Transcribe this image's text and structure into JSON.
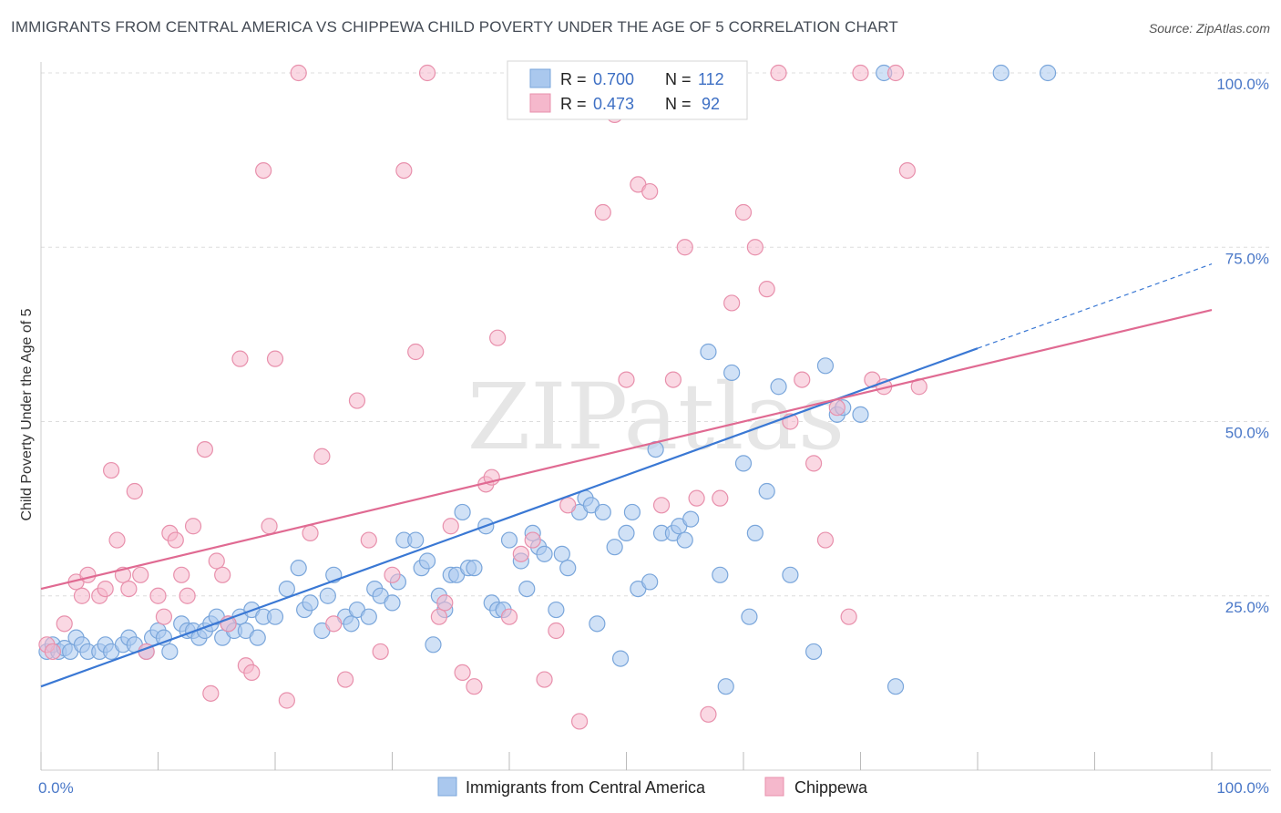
{
  "title": "IMMIGRANTS FROM CENTRAL AMERICA VS CHIPPEWA CHILD POVERTY UNDER THE AGE OF 5 CORRELATION CHART",
  "source": "Source: ZipAtlas.com",
  "colors": {
    "blue_fill": "#aac8ee",
    "blue_stroke": "#7aa6db",
    "blue_line": "#3a78d4",
    "pink_fill": "#f5b8cc",
    "pink_stroke": "#e890ac",
    "pink_line": "#e06a92",
    "grid": "#dddddd",
    "axis_text": "#4a78c8"
  },
  "chart_data": {
    "type": "scatter",
    "xlabel": "",
    "ylabel": "Child Poverty Under the Age of 5",
    "xlim": [
      0,
      100
    ],
    "ylim": [
      0,
      100
    ],
    "x_tick_labels": [
      "0.0%",
      "100.0%"
    ],
    "y_tick_labels": [
      "25.0%",
      "50.0%",
      "75.0%",
      "100.0%"
    ],
    "y_ticks": [
      25,
      50,
      75,
      100
    ],
    "watermark": "ZIPatlas",
    "legend": [
      {
        "series": "Immigrants from Central America",
        "r_label": "R =",
        "r": "0.700",
        "n_label": "N =",
        "n": "112"
      },
      {
        "series": "Chippewa",
        "r_label": "R =",
        "r": "0.473",
        "n_label": "N =",
        "n": "92"
      }
    ],
    "series": [
      {
        "name": "Immigrants from Central America",
        "color": "blue",
        "trend": {
          "x0": 0,
          "y0": 12,
          "x1": 80,
          "y1": 60.5,
          "dash_to_x": 100,
          "dash_to_y": 72.6
        },
        "points": [
          [
            0.5,
            17
          ],
          [
            1,
            18
          ],
          [
            1.5,
            17
          ],
          [
            2,
            17.5
          ],
          [
            2.5,
            17
          ],
          [
            3,
            19
          ],
          [
            3.5,
            18
          ],
          [
            4,
            17
          ],
          [
            5,
            17
          ],
          [
            5.5,
            18
          ],
          [
            6,
            17
          ],
          [
            7,
            18
          ],
          [
            7.5,
            19
          ],
          [
            8,
            18
          ],
          [
            9,
            17
          ],
          [
            9.5,
            19
          ],
          [
            10,
            20
          ],
          [
            10.5,
            19
          ],
          [
            11,
            17
          ],
          [
            12,
            21
          ],
          [
            12.5,
            20
          ],
          [
            13,
            20
          ],
          [
            13.5,
            19
          ],
          [
            14,
            20
          ],
          [
            14.5,
            21
          ],
          [
            15,
            22
          ],
          [
            15.5,
            19
          ],
          [
            16,
            21
          ],
          [
            16.5,
            20
          ],
          [
            17,
            22
          ],
          [
            17.5,
            20
          ],
          [
            18,
            23
          ],
          [
            18.5,
            19
          ],
          [
            19,
            22
          ],
          [
            20,
            22
          ],
          [
            21,
            26
          ],
          [
            22,
            29
          ],
          [
            22.5,
            23
          ],
          [
            23,
            24
          ],
          [
            24,
            20
          ],
          [
            24.5,
            25
          ],
          [
            25,
            28
          ],
          [
            26,
            22
          ],
          [
            26.5,
            21
          ],
          [
            27,
            23
          ],
          [
            28,
            22
          ],
          [
            28.5,
            26
          ],
          [
            29,
            25
          ],
          [
            30,
            24
          ],
          [
            30.5,
            27
          ],
          [
            31,
            33
          ],
          [
            32,
            33
          ],
          [
            32.5,
            29
          ],
          [
            33,
            30
          ],
          [
            33.5,
            18
          ],
          [
            34,
            25
          ],
          [
            34.5,
            23
          ],
          [
            35,
            28
          ],
          [
            35.5,
            28
          ],
          [
            36,
            37
          ],
          [
            36.5,
            29
          ],
          [
            37,
            29
          ],
          [
            38,
            35
          ],
          [
            38.5,
            24
          ],
          [
            39,
            23
          ],
          [
            39.5,
            23
          ],
          [
            40,
            33
          ],
          [
            41,
            30
          ],
          [
            41.5,
            26
          ],
          [
            42,
            34
          ],
          [
            42.5,
            32
          ],
          [
            43,
            31
          ],
          [
            44,
            23
          ],
          [
            44.5,
            31
          ],
          [
            45,
            29
          ],
          [
            46,
            37
          ],
          [
            46.5,
            39
          ],
          [
            47,
            38
          ],
          [
            47.5,
            21
          ],
          [
            48,
            37
          ],
          [
            49,
            32
          ],
          [
            49.5,
            16
          ],
          [
            50,
            34
          ],
          [
            50.5,
            37
          ],
          [
            51,
            26
          ],
          [
            52,
            27
          ],
          [
            52.5,
            46
          ],
          [
            53,
            34
          ],
          [
            54,
            34
          ],
          [
            54.5,
            35
          ],
          [
            55,
            33
          ],
          [
            55.5,
            36
          ],
          [
            57,
            60
          ],
          [
            58,
            28
          ],
          [
            58.5,
            12
          ],
          [
            59,
            57
          ],
          [
            60,
            44
          ],
          [
            60.5,
            22
          ],
          [
            61,
            34
          ],
          [
            62,
            40
          ],
          [
            63,
            55
          ],
          [
            64,
            28
          ],
          [
            66,
            17
          ],
          [
            67,
            58
          ],
          [
            68,
            51
          ],
          [
            68.5,
            52
          ],
          [
            70,
            51
          ],
          [
            72,
            100
          ],
          [
            73,
            12
          ],
          [
            82,
            100
          ],
          [
            86,
            100
          ]
        ]
      },
      {
        "name": "Chippewa",
        "color": "pink",
        "trend": {
          "x0": 0,
          "y0": 26,
          "x1": 100,
          "y1": 66
        },
        "points": [
          [
            0.5,
            18
          ],
          [
            1,
            17
          ],
          [
            2,
            21
          ],
          [
            3,
            27
          ],
          [
            3.5,
            25
          ],
          [
            4,
            28
          ],
          [
            5,
            25
          ],
          [
            5.5,
            26
          ],
          [
            6,
            43
          ],
          [
            6.5,
            33
          ],
          [
            7,
            28
          ],
          [
            7.5,
            26
          ],
          [
            8,
            40
          ],
          [
            8.5,
            28
          ],
          [
            9,
            17
          ],
          [
            10,
            25
          ],
          [
            10.5,
            22
          ],
          [
            11,
            34
          ],
          [
            11.5,
            33
          ],
          [
            12,
            28
          ],
          [
            12.5,
            25
          ],
          [
            13,
            35
          ],
          [
            14,
            46
          ],
          [
            14.5,
            11
          ],
          [
            15,
            30
          ],
          [
            15.5,
            28
          ],
          [
            16,
            21
          ],
          [
            17,
            59
          ],
          [
            17.5,
            15
          ],
          [
            18,
            14
          ],
          [
            19,
            86
          ],
          [
            19.5,
            35
          ],
          [
            20,
            59
          ],
          [
            21,
            10
          ],
          [
            22,
            100
          ],
          [
            23,
            34
          ],
          [
            24,
            45
          ],
          [
            25,
            21
          ],
          [
            26,
            13
          ],
          [
            27,
            53
          ],
          [
            28,
            33
          ],
          [
            29,
            17
          ],
          [
            30,
            28
          ],
          [
            31,
            86
          ],
          [
            32,
            60
          ],
          [
            33,
            100
          ],
          [
            34,
            22
          ],
          [
            34.5,
            24
          ],
          [
            35,
            35
          ],
          [
            36,
            14
          ],
          [
            37,
            12
          ],
          [
            38,
            41
          ],
          [
            38.5,
            42
          ],
          [
            39,
            62
          ],
          [
            40,
            22
          ],
          [
            41,
            31
          ],
          [
            42,
            33
          ],
          [
            43,
            13
          ],
          [
            44,
            20
          ],
          [
            45,
            38
          ],
          [
            46,
            7
          ],
          [
            47,
            100
          ],
          [
            48,
            80
          ],
          [
            49,
            94
          ],
          [
            50,
            56
          ],
          [
            51,
            84
          ],
          [
            52,
            83
          ],
          [
            53,
            38
          ],
          [
            54,
            56
          ],
          [
            55,
            75
          ],
          [
            56,
            39
          ],
          [
            57,
            8
          ],
          [
            58,
            39
          ],
          [
            59,
            67
          ],
          [
            60,
            80
          ],
          [
            61,
            75
          ],
          [
            62,
            69
          ],
          [
            63,
            100
          ],
          [
            64,
            50
          ],
          [
            65,
            56
          ],
          [
            66,
            44
          ],
          [
            67,
            33
          ],
          [
            68,
            52
          ],
          [
            69,
            22
          ],
          [
            70,
            100
          ],
          [
            71,
            56
          ],
          [
            72,
            55
          ],
          [
            73,
            100
          ],
          [
            74,
            86
          ],
          [
            75,
            55
          ]
        ]
      }
    ]
  },
  "bottom_legend": [
    "Immigrants from Central America",
    "Chippewa"
  ]
}
